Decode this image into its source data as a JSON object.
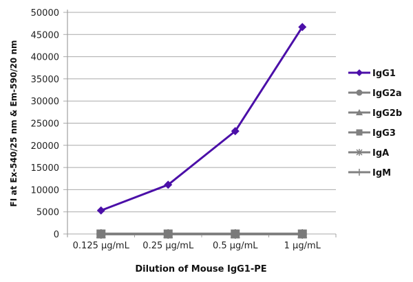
{
  "chart_data": {
    "type": "line",
    "title": "",
    "xlabel": "Dilution of Mouse IgG1-PE",
    "ylabel": "FI at Ex-540/25 nm & Em-590/20 nm",
    "categories": [
      "0.125 µg/mL",
      "0.25 µg/mL",
      "0.5 µg/mL",
      "1 µg/mL"
    ],
    "ylim": [
      0,
      50000
    ],
    "yticks": [
      0,
      5000,
      10000,
      15000,
      20000,
      25000,
      30000,
      35000,
      40000,
      45000,
      50000
    ],
    "grid": "horizontal",
    "legend_position": "right",
    "series": [
      {
        "name": "IgG1",
        "values": [
          5300,
          11100,
          23200,
          46700
        ],
        "color": "#4B0FA8",
        "marker": "diamond"
      },
      {
        "name": "IgG2a",
        "values": [
          0,
          0,
          0,
          0
        ],
        "color": "#808080",
        "marker": "circle"
      },
      {
        "name": "IgG2b",
        "values": [
          0,
          0,
          0,
          0
        ],
        "color": "#808080",
        "marker": "triangle"
      },
      {
        "name": "IgG3",
        "values": [
          0,
          0,
          0,
          0
        ],
        "color": "#808080",
        "marker": "square"
      },
      {
        "name": "IgA",
        "values": [
          0,
          0,
          0,
          0
        ],
        "color": "#808080",
        "marker": "star"
      },
      {
        "name": "IgM",
        "values": [
          0,
          0,
          0,
          0
        ],
        "color": "#808080",
        "marker": "plus"
      }
    ]
  }
}
